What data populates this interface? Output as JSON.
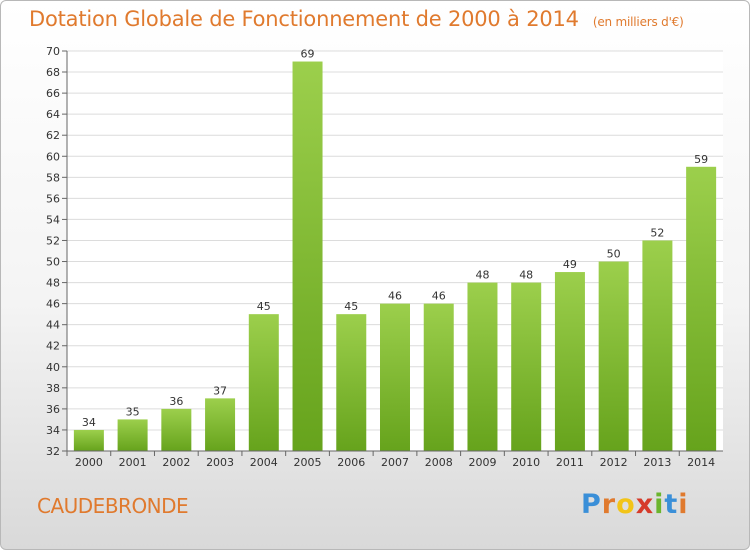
{
  "chart_data": {
    "type": "bar",
    "title": "Dotation Globale de Fonctionnement de 2000 à 2014",
    "unit_label": "(en milliers d'€)",
    "categories": [
      "2000",
      "2001",
      "2002",
      "2003",
      "2004",
      "2005",
      "2006",
      "2007",
      "2008",
      "2009",
      "2010",
      "2011",
      "2012",
      "2013",
      "2014"
    ],
    "values": [
      34,
      35,
      36,
      37,
      45,
      69,
      45,
      46,
      46,
      48,
      48,
      49,
      50,
      52,
      59
    ],
    "data_labels": [
      "34",
      "35",
      "36",
      "37",
      "45",
      "69",
      "45",
      "46",
      "46",
      "48",
      "48",
      "49",
      "50",
      "52",
      "59"
    ],
    "ylim": [
      32,
      70
    ],
    "yticks": [
      "32",
      "34",
      "36",
      "38",
      "40",
      "42",
      "44",
      "46",
      "48",
      "50",
      "52",
      "54",
      "56",
      "58",
      "60",
      "62",
      "64",
      "66",
      "68",
      "70"
    ],
    "grid": true,
    "bar_color_top": "#9ccf4c",
    "bar_color_bottom": "#66a31c"
  },
  "commune": "CAUDEBRONDE",
  "logo": {
    "letters": [
      "P",
      "r",
      "o",
      "x",
      "i",
      "t",
      "i"
    ],
    "colors": [
      "#3a8fd8",
      "#e07a2e",
      "#f2c418",
      "#d63b2a",
      "#6bb52e",
      "#3a8fd8",
      "#e07a2e"
    ]
  }
}
